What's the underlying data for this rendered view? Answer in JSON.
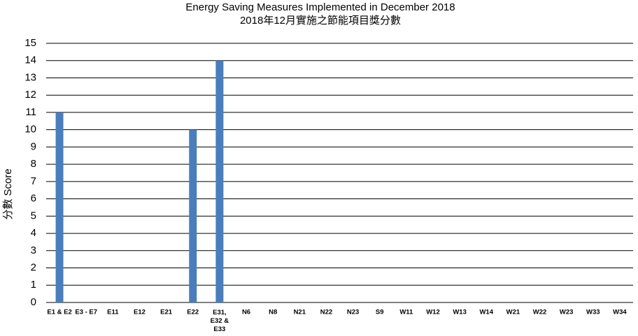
{
  "chart_data": {
    "type": "bar",
    "title": "Energy Saving Measures Implemented in December 2018",
    "subtitle": "2018年12月實施之節能項目獎分數",
    "y_label": "分數 Score",
    "categories": [
      "E1 & E2",
      "E3 - E7",
      "E11",
      "E12",
      "E21",
      "E22",
      "E31, E32 & E33",
      "N6",
      "N8",
      "N21",
      "N22",
      "N23",
      "S9",
      "W11",
      "W12",
      "W13",
      "W14",
      "W21",
      "W22",
      "W23",
      "W33",
      "W34"
    ],
    "values": [
      11,
      0,
      0,
      0,
      0,
      10,
      14,
      0,
      0,
      0,
      0,
      0,
      0,
      0,
      0,
      0,
      0,
      0,
      0,
      0,
      0,
      0
    ],
    "color": "#4a7ebb",
    "ylim": [
      0,
      15
    ],
    "yticks": [
      0,
      1,
      2,
      3,
      4,
      5,
      6,
      7,
      8,
      9,
      10,
      11,
      12,
      13,
      14,
      15
    ],
    "grid": true
  }
}
